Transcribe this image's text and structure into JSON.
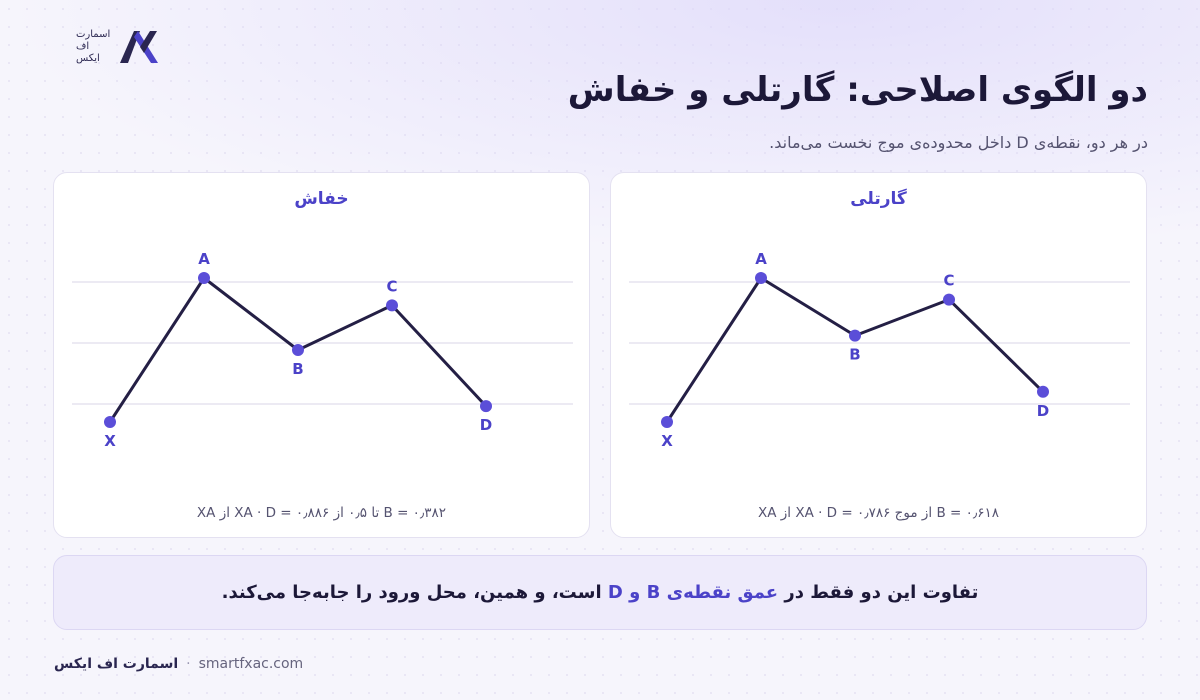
{
  "logo": {
    "line1": "اسمارت",
    "line2": "اف",
    "line3": "ایکس"
  },
  "title": "دو الگوی اصلاحی: گارتلی و خفاش",
  "subtitle": "در هر دو، نقطه‌ی D داخل محدوده‌ی موج نخست می‌ماند.",
  "chart_data": [
    {
      "type": "line",
      "title": "گارتلی",
      "points": [
        {
          "label": "X",
          "x": 0,
          "y": 0.0
        },
        {
          "label": "A",
          "x": 1,
          "y": 1.0
        },
        {
          "label": "B",
          "x": 2,
          "y": 0.6
        },
        {
          "label": "C",
          "x": 3,
          "y": 0.85
        },
        {
          "label": "D",
          "x": 4,
          "y": 0.21
        }
      ],
      "gridlines": 3,
      "formula": "B = ۰٫۶۱۸ از موج XA · D = ۰٫۷۸۶ از XA",
      "colors": {
        "line": "#241f45",
        "point": "#5b4ed8",
        "label": "#4b42c8"
      }
    },
    {
      "type": "line",
      "title": "خفاش",
      "points": [
        {
          "label": "X",
          "x": 0,
          "y": 0.0
        },
        {
          "label": "A",
          "x": 1,
          "y": 1.0
        },
        {
          "label": "B",
          "x": 2,
          "y": 0.5
        },
        {
          "label": "C",
          "x": 3,
          "y": 0.81
        },
        {
          "label": "D",
          "x": 4,
          "y": 0.11
        }
      ],
      "gridlines": 3,
      "formula": "B = ۰٫۳۸۲ تا ۰٫۵ از XA · D = ۰٫۸۸۶ از XA",
      "colors": {
        "line": "#241f45",
        "point": "#5b4ed8",
        "label": "#4b42c8"
      }
    }
  ],
  "banner": {
    "part1": "تفاوت این دو فقط در ",
    "highlight": "عمق نقطه‌ی B و D",
    "part2": " است، و همین، محل ورود را جابه‌جا می‌کند."
  },
  "footer": {
    "brand": "اسمارت اف ایکس",
    "separator": "·",
    "site": "smartfxac.com"
  }
}
